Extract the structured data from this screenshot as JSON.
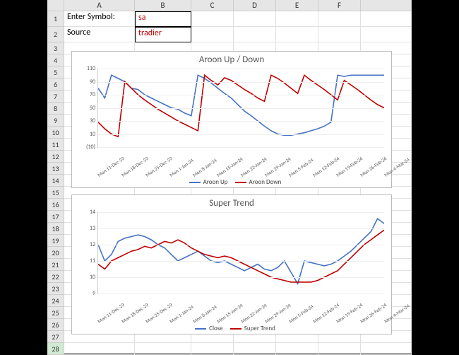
{
  "columns": [
    "A",
    "B",
    "C",
    "D",
    "E",
    "F"
  ],
  "rows_visible": 28,
  "selected_row": 28,
  "cells": {
    "A1": {
      "text": "Enter Symbol:",
      "class": ""
    },
    "B1": {
      "text": "sa",
      "class": "red boxed"
    },
    "A2": {
      "text": "Source",
      "class": ""
    },
    "B2": {
      "text": "tradier",
      "class": "red boxed"
    }
  },
  "chart1": {
    "title": "Aroon Up / Down",
    "ylim": [
      -10,
      110
    ],
    "yticks": [
      -10,
      10,
      30,
      50,
      70,
      90,
      110
    ],
    "ytick_paren_neg": true,
    "xlabels": [
      "Mon 11-Dec-23",
      "Mon 18-Dec-23",
      "Mon 25-Dec-23",
      "Mon 1-Jan-24",
      "Mon 8-Jan-24",
      "Mon 15-Jan-24",
      "Mon 22-Jan-24",
      "Mon 29-Jan-24",
      "Mon 5-Feb-24",
      "Mon 12-Feb-24",
      "Mon 19-Feb-24",
      "Mon 26-Feb-24",
      "Mon 4-Mar-24"
    ],
    "series": [
      {
        "name": "Aroon Up",
        "color": "#4472c4",
        "y": [
          80,
          65,
          100,
          95,
          90,
          80,
          78,
          70,
          65,
          60,
          55,
          50,
          48,
          42,
          38,
          100,
          95,
          88,
          80,
          72,
          65,
          55,
          45,
          38,
          30,
          22,
          15,
          10,
          8,
          8,
          10,
          12,
          15,
          18,
          22,
          28,
          100,
          98,
          100,
          100,
          100,
          100,
          100,
          100
        ]
      },
      {
        "name": "Aroon Down",
        "color": "#c00000",
        "y": [
          28,
          18,
          10,
          6,
          90,
          80,
          70,
          62,
          55,
          48,
          42,
          36,
          30,
          25,
          20,
          15,
          100,
          92,
          85,
          96,
          92,
          85,
          78,
          72,
          65,
          60,
          100,
          95,
          88,
          80,
          72,
          100,
          92,
          85,
          78,
          70,
          62,
          92,
          85,
          78,
          70,
          62,
          55,
          50
        ]
      }
    ],
    "legend": [
      "Aroon Up",
      "Aroon Down"
    ]
  },
  "chart2": {
    "title": "Super Trend",
    "ylim": [
      9,
      14
    ],
    "yticks": [
      9,
      10,
      11,
      12,
      13,
      14
    ],
    "ytick_paren_neg": false,
    "xlabels": [
      "Mon 11-Dec-23",
      "Mon 18-Dec-23",
      "Mon 25-Dec-23",
      "Mon 1-Jan-24",
      "Mon 8-Jan-24",
      "Mon 15-Jan-24",
      "Mon 22-Jan-24",
      "Mon 29-Jan-24",
      "Mon 5-Feb-24",
      "Mon 12-Feb-24",
      "Mon 19-Feb-24",
      "Mon 26-Feb-24",
      "Mon 4-Mar-24"
    ],
    "series": [
      {
        "name": "Close",
        "color": "#4472c4",
        "y": [
          12.0,
          11.0,
          11.4,
          12.2,
          12.4,
          12.5,
          12.6,
          12.5,
          12.3,
          12.0,
          11.8,
          11.4,
          11.0,
          11.2,
          11.4,
          11.6,
          11.3,
          11.0,
          10.9,
          11.0,
          10.8,
          10.6,
          10.4,
          10.6,
          10.8,
          10.5,
          10.4,
          10.6,
          11.0,
          10.3,
          9.6,
          11.0,
          10.9,
          10.8,
          10.7,
          10.8,
          11.0,
          11.3,
          11.6,
          12.0,
          12.4,
          12.8,
          13.6,
          13.3
        ]
      },
      {
        "name": "Super Trend",
        "color": "#c00000",
        "y": [
          10.8,
          10.5,
          11.0,
          11.2,
          11.4,
          11.6,
          11.7,
          11.9,
          11.8,
          12.0,
          12.2,
          12.1,
          12.3,
          12.1,
          11.8,
          11.6,
          11.4,
          11.3,
          11.2,
          11.3,
          11.2,
          11.0,
          10.8,
          10.6,
          10.4,
          10.2,
          10.0,
          9.9,
          9.8,
          9.7,
          9.7,
          9.7,
          9.7,
          9.8,
          10.0,
          10.2,
          10.4,
          10.8,
          11.2,
          11.6,
          12.0,
          12.3,
          12.6,
          12.9
        ]
      }
    ],
    "legend": [
      "Close",
      "Super Trend"
    ]
  }
}
